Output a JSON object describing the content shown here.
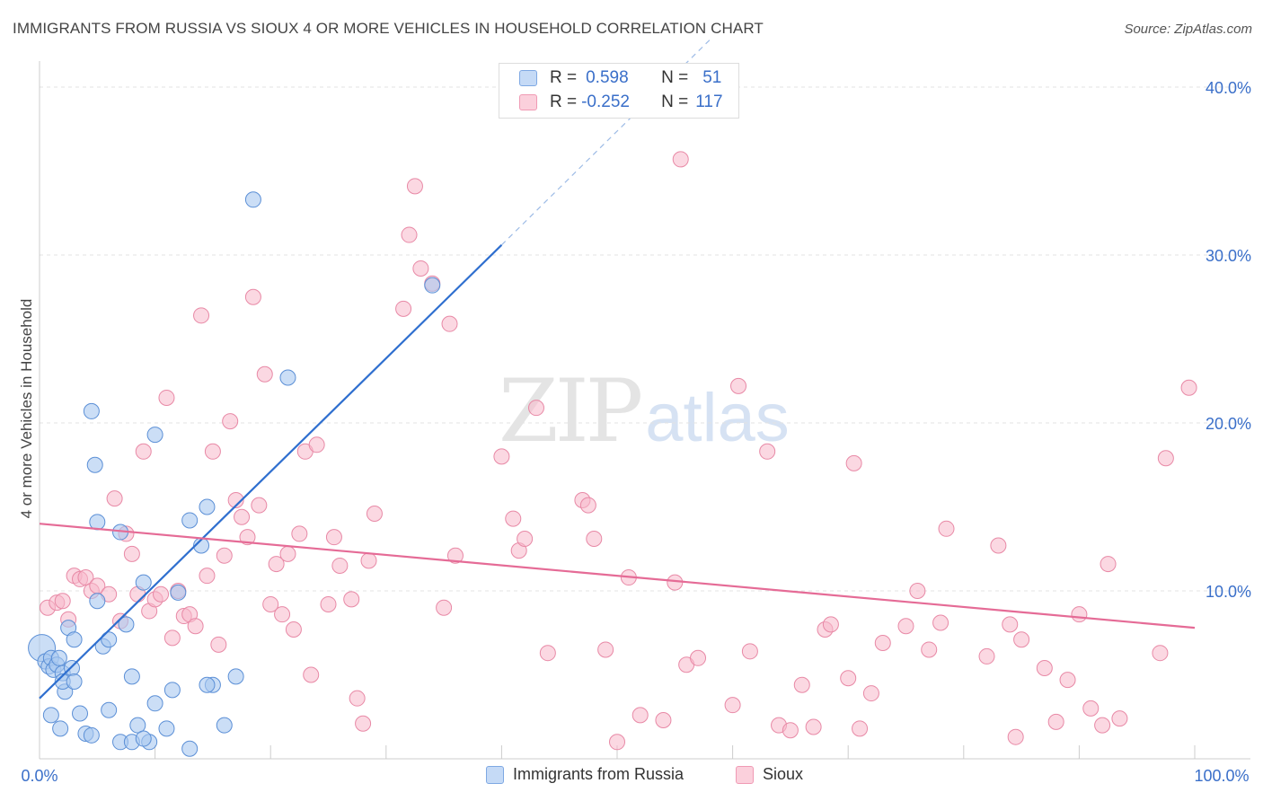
{
  "header": {
    "title": "IMMIGRANTS FROM RUSSIA VS SIOUX 4 OR MORE VEHICLES IN HOUSEHOLD CORRELATION CHART",
    "source": "Source: ZipAtlas.com"
  },
  "watermark": {
    "zip": "ZIP",
    "atlas": "atlas"
  },
  "legend": {
    "rows": [
      {
        "r_label": "R =",
        "r_value": "0.598",
        "n_label": "N =",
        "n_value": "51",
        "color": "#a9c8f0"
      },
      {
        "r_label": "R =",
        "r_value": "-0.252",
        "n_label": "N =",
        "n_value": "117",
        "color": "#f7b8ca"
      }
    ]
  },
  "bottom_legend": {
    "items": [
      {
        "label": "Immigrants from Russia",
        "color": "#a9c8f0"
      },
      {
        "label": "Sioux",
        "color": "#f7b8ca"
      }
    ]
  },
  "chart_data": {
    "type": "scatter",
    "title": "IMMIGRANTS FROM RUSSIA VS SIOUX 4 OR MORE VEHICLES IN HOUSEHOLD CORRELATION CHART",
    "xlabel": "",
    "ylabel": "4 or more Vehicles in Household",
    "xlim": [
      0,
      100
    ],
    "ylim": [
      0,
      40
    ],
    "x_tick_labels": [
      "0.0%",
      "100.0%"
    ],
    "y_ticks": [
      10,
      20,
      30,
      40
    ],
    "y_tick_labels": [
      "10.0%",
      "20.0%",
      "30.0%",
      "40.0%"
    ],
    "grid": true,
    "legend_position": "top-center",
    "colors": {
      "russia_fill": "#a9c8f0",
      "russia_stroke": "#5b8fd6",
      "russia_line": "#2f6fcf",
      "sioux_fill": "#f7b8ca",
      "sioux_stroke": "#e889a6",
      "sioux_line": "#e56b96",
      "axis_text": "#3a6fc9"
    },
    "series": [
      {
        "name": "Immigrants from Russia",
        "r": 0.598,
        "n": 51,
        "trend": {
          "x": [
            0,
            40
          ],
          "y": [
            3.6,
            30.6
          ],
          "dashed_to": [
            58,
            42.8
          ]
        },
        "points": [
          [
            0.2,
            6.6
          ],
          [
            0.5,
            5.8
          ],
          [
            0.8,
            5.5
          ],
          [
            1.0,
            6.0
          ],
          [
            1.2,
            5.3
          ],
          [
            1.5,
            5.6
          ],
          [
            1.7,
            6.0
          ],
          [
            2.0,
            5.1
          ],
          [
            2.2,
            4.0
          ],
          [
            2.5,
            7.8
          ],
          [
            2.8,
            5.4
          ],
          [
            3.0,
            7.1
          ],
          [
            3.5,
            2.7
          ],
          [
            4.0,
            1.5
          ],
          [
            4.5,
            1.4
          ],
          [
            5.0,
            9.4
          ],
          [
            5.5,
            6.7
          ],
          [
            6.0,
            7.1
          ],
          [
            7.0,
            1.0
          ],
          [
            7.5,
            8.0
          ],
          [
            8.0,
            4.9
          ],
          [
            8.5,
            2.0
          ],
          [
            9.0,
            10.5
          ],
          [
            9.5,
            1.0
          ],
          [
            10.0,
            3.3
          ],
          [
            11.0,
            1.8
          ],
          [
            11.5,
            4.1
          ],
          [
            12.0,
            9.9
          ],
          [
            13.0,
            0.6
          ],
          [
            14.0,
            12.7
          ],
          [
            14.5,
            15.0
          ],
          [
            15.0,
            4.4
          ],
          [
            16.0,
            2.0
          ],
          [
            17.0,
            4.9
          ],
          [
            4.5,
            20.7
          ],
          [
            4.8,
            17.5
          ],
          [
            5.0,
            14.1
          ],
          [
            7.0,
            13.5
          ],
          [
            10.0,
            19.3
          ],
          [
            13.0,
            14.2
          ],
          [
            18.5,
            33.3
          ],
          [
            21.5,
            22.7
          ],
          [
            1.0,
            2.6
          ],
          [
            2.0,
            4.6
          ],
          [
            3.0,
            4.6
          ],
          [
            6.0,
            2.9
          ],
          [
            8.0,
            1.0
          ],
          [
            9.0,
            1.2
          ],
          [
            14.5,
            4.4
          ],
          [
            34.0,
            28.2
          ],
          [
            1.8,
            1.8
          ]
        ]
      },
      {
        "name": "Sioux",
        "r": -0.252,
        "n": 117,
        "trend": {
          "x": [
            0,
            100
          ],
          "y": [
            14.0,
            7.8
          ]
        },
        "points": [
          [
            0.7,
            9.0
          ],
          [
            1.5,
            9.3
          ],
          [
            2.0,
            9.4
          ],
          [
            2.5,
            8.3
          ],
          [
            3.0,
            10.9
          ],
          [
            3.5,
            10.7
          ],
          [
            4.0,
            10.8
          ],
          [
            4.5,
            10.0
          ],
          [
            5.0,
            10.3
          ],
          [
            6.0,
            9.8
          ],
          [
            6.5,
            15.5
          ],
          [
            7.0,
            8.2
          ],
          [
            7.5,
            13.4
          ],
          [
            8.0,
            12.2
          ],
          [
            8.5,
            9.8
          ],
          [
            9.0,
            18.3
          ],
          [
            9.5,
            8.8
          ],
          [
            10.0,
            9.5
          ],
          [
            10.5,
            9.8
          ],
          [
            11.0,
            21.5
          ],
          [
            11.5,
            7.2
          ],
          [
            12.0,
            10.0
          ],
          [
            12.5,
            8.5
          ],
          [
            13.0,
            8.6
          ],
          [
            13.5,
            7.9
          ],
          [
            14.0,
            26.4
          ],
          [
            14.5,
            10.9
          ],
          [
            15.0,
            18.3
          ],
          [
            15.5,
            6.8
          ],
          [
            16.0,
            12.1
          ],
          [
            16.5,
            20.1
          ],
          [
            17.0,
            15.4
          ],
          [
            17.5,
            14.4
          ],
          [
            18.0,
            13.2
          ],
          [
            18.5,
            27.5
          ],
          [
            19.0,
            15.1
          ],
          [
            19.5,
            22.9
          ],
          [
            20.0,
            9.2
          ],
          [
            20.5,
            11.6
          ],
          [
            21.0,
            8.6
          ],
          [
            21.5,
            12.2
          ],
          [
            22.0,
            7.7
          ],
          [
            22.5,
            13.4
          ],
          [
            23.0,
            18.3
          ],
          [
            23.5,
            5.0
          ],
          [
            24.0,
            18.7
          ],
          [
            25.0,
            9.2
          ],
          [
            25.5,
            13.2
          ],
          [
            26.0,
            11.5
          ],
          [
            27.0,
            9.5
          ],
          [
            27.5,
            3.6
          ],
          [
            28.0,
            2.1
          ],
          [
            28.5,
            11.8
          ],
          [
            29.0,
            14.6
          ],
          [
            31.5,
            26.8
          ],
          [
            32.0,
            31.2
          ],
          [
            32.5,
            34.1
          ],
          [
            33.0,
            29.2
          ],
          [
            34.0,
            28.3
          ],
          [
            35.0,
            9.0
          ],
          [
            35.5,
            25.9
          ],
          [
            36.0,
            12.1
          ],
          [
            40.0,
            18.0
          ],
          [
            41.0,
            14.3
          ],
          [
            41.5,
            12.4
          ],
          [
            42.0,
            13.1
          ],
          [
            43.0,
            20.9
          ],
          [
            44.0,
            6.3
          ],
          [
            47.0,
            15.4
          ],
          [
            47.5,
            15.1
          ],
          [
            48.0,
            13.1
          ],
          [
            49.0,
            6.5
          ],
          [
            50.0,
            1.0
          ],
          [
            51.0,
            10.8
          ],
          [
            52.0,
            2.6
          ],
          [
            54.0,
            2.3
          ],
          [
            55.0,
            10.5
          ],
          [
            55.5,
            35.7
          ],
          [
            56.0,
            5.6
          ],
          [
            57.0,
            6.0
          ],
          [
            60.0,
            3.2
          ],
          [
            60.5,
            22.2
          ],
          [
            61.5,
            6.4
          ],
          [
            63.0,
            18.3
          ],
          [
            64.0,
            2.0
          ],
          [
            65.0,
            1.7
          ],
          [
            66.0,
            4.4
          ],
          [
            67.0,
            1.9
          ],
          [
            68.0,
            7.7
          ],
          [
            68.5,
            8.0
          ],
          [
            70.0,
            4.8
          ],
          [
            70.5,
            17.6
          ],
          [
            71.0,
            1.8
          ],
          [
            72.0,
            3.9
          ],
          [
            73.0,
            6.9
          ],
          [
            75.0,
            7.9
          ],
          [
            76.0,
            10.0
          ],
          [
            77.0,
            6.5
          ],
          [
            78.0,
            8.1
          ],
          [
            78.5,
            13.7
          ],
          [
            82.0,
            6.1
          ],
          [
            83.0,
            12.7
          ],
          [
            84.0,
            8.0
          ],
          [
            84.5,
            1.3
          ],
          [
            85.0,
            7.1
          ],
          [
            87.0,
            5.4
          ],
          [
            88.0,
            2.2
          ],
          [
            89.0,
            4.7
          ],
          [
            90.0,
            8.6
          ],
          [
            91.0,
            3.0
          ],
          [
            92.0,
            2.0
          ],
          [
            92.5,
            11.6
          ],
          [
            93.5,
            2.4
          ],
          [
            97.0,
            6.3
          ],
          [
            97.5,
            17.9
          ],
          [
            99.5,
            22.1
          ]
        ]
      }
    ]
  }
}
